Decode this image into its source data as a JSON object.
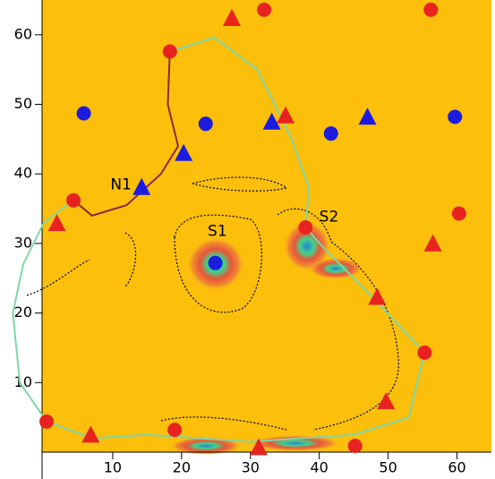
{
  "chart_data": {
    "type": "scatter",
    "xlim": [
      0,
      65
    ],
    "ylim": [
      0,
      65
    ],
    "xticks": [
      10,
      20,
      30,
      40,
      50,
      60
    ],
    "yticks": [
      10,
      20,
      30,
      40,
      50,
      60
    ],
    "background": "#fbbf0c",
    "series": [
      {
        "marker": "line",
        "color": "#7ed6a8",
        "x": [
          18.3,
          24.8,
          31,
          36,
          38.5,
          38,
          41,
          48,
          55.3,
          53,
          45,
          30,
          15,
          7,
          0.4,
          -3.5,
          -4.5,
          -3,
          0,
          4.3
        ],
        "values": [
          57.6,
          59.6,
          55,
          45,
          38,
          32.3,
          29,
          22,
          14.3,
          5,
          2.5,
          1.5,
          2.5,
          2,
          4.4,
          10,
          20,
          27,
          33,
          36.2
        ]
      },
      {
        "marker": "line",
        "color": "#8b2a3a",
        "x": [
          18.3,
          18,
          19.5,
          17,
          12,
          7,
          4.3
        ],
        "values": [
          57.6,
          50,
          44,
          40,
          35.5,
          34,
          36.2
        ]
      },
      {
        "marker": "circle",
        "color": "#e8231f",
        "x": [
          32,
          56.2,
          18.3,
          4.3,
          60.3,
          38,
          55.3,
          0.4,
          19,
          45.2
        ],
        "values": [
          63.6,
          63.6,
          57.6,
          36.2,
          34.3,
          32.3,
          14.3,
          4.4,
          3.2,
          0.9
        ]
      },
      {
        "marker": "triangle",
        "color": "#e8231f",
        "x": [
          27.3,
          35.1,
          1.9,
          56.5,
          48.4,
          49.7,
          6.8,
          31.2
        ],
        "values": [
          62.3,
          48.3,
          32.8,
          29.9,
          22.2,
          7.2,
          2.4,
          0.6
        ]
      },
      {
        "marker": "circle",
        "color": "#1c1ce0",
        "x": [
          5.8,
          23.5,
          41.7,
          59.7,
          24.9
        ],
        "values": [
          48.7,
          47.2,
          45.8,
          48.2,
          27.2
        ]
      },
      {
        "marker": "triangle",
        "color": "#1c1ce0",
        "x": [
          33.1,
          47,
          20.3,
          14.2
        ],
        "values": [
          47.4,
          48.1,
          42.9,
          38
        ]
      }
    ],
    "annotations": [
      {
        "text": "N1",
        "x": 11.2,
        "y": 38.4
      },
      {
        "text": "S1",
        "x": 25.2,
        "y": 31.7
      },
      {
        "text": "S2",
        "x": 41.4,
        "y": 33.8
      }
    ]
  }
}
